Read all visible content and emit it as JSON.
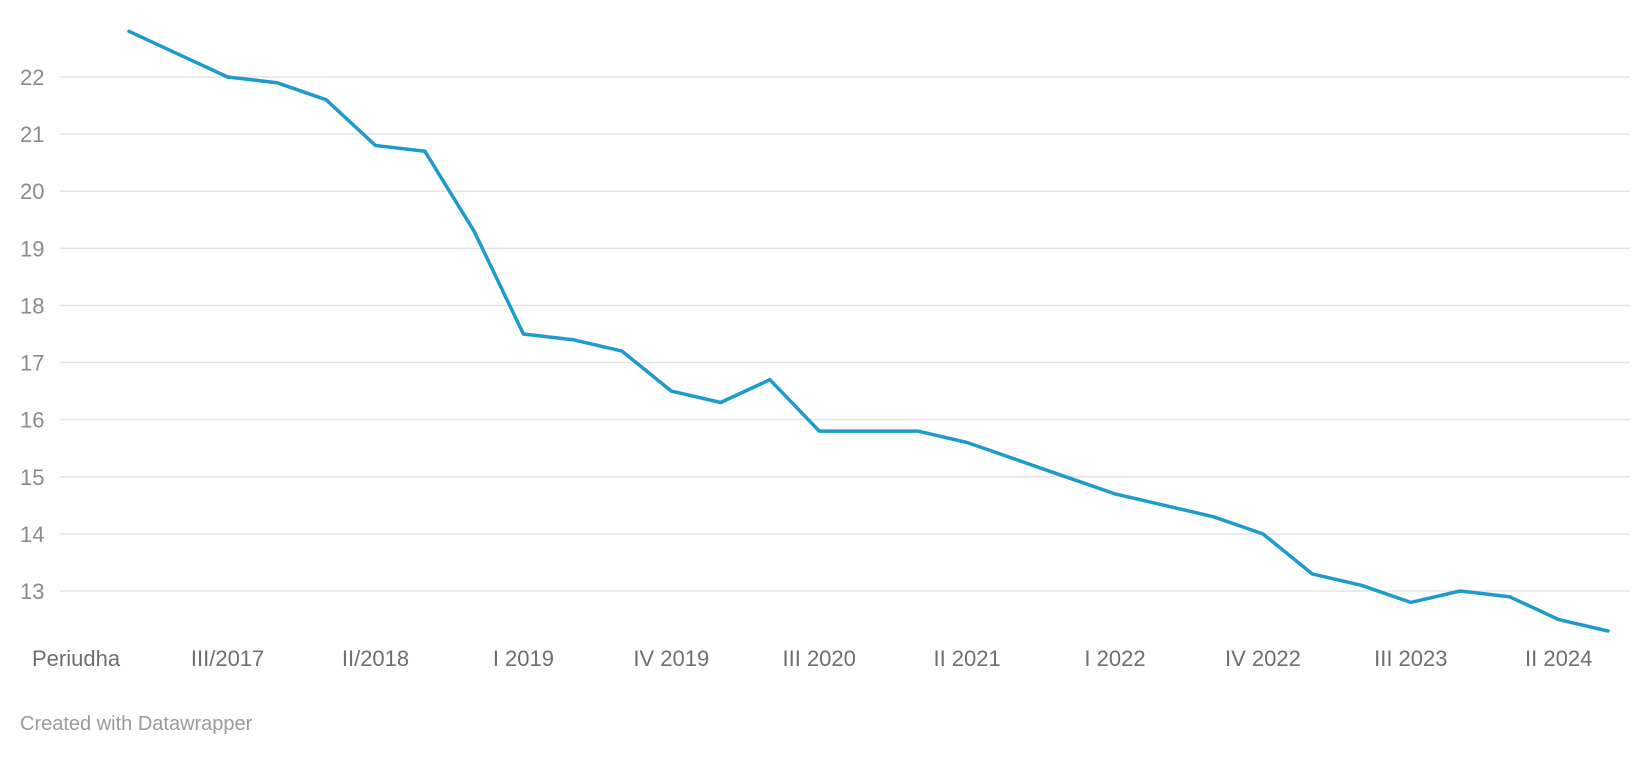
{
  "chart_data": {
    "type": "line",
    "title": "",
    "xlabel": "",
    "ylabel": "",
    "ylim": [
      12.2,
      23.0
    ],
    "grid": true,
    "y_ticks": [
      13,
      14,
      15,
      16,
      17,
      18,
      19,
      20,
      21,
      22
    ],
    "x_tick_labels": [
      {
        "label": "Periudha",
        "index": 0
      },
      {
        "label": "III/2017",
        "index": 2
      },
      {
        "label": "II/2018",
        "index": 5
      },
      {
        "label": "I 2019",
        "index": 8
      },
      {
        "label": "IV 2019",
        "index": 11
      },
      {
        "label": "III 2020",
        "index": 14
      },
      {
        "label": "II 2021",
        "index": 17
      },
      {
        "label": "I 2022",
        "index": 20
      },
      {
        "label": "IV 2022",
        "index": 23
      },
      {
        "label": "III 2023",
        "index": 26
      },
      {
        "label": "II 2024",
        "index": 29
      }
    ],
    "series": [
      {
        "color": "#1d9bcc",
        "values": [
          22.8,
          22.4,
          22.0,
          21.9,
          21.6,
          20.8,
          20.7,
          19.3,
          17.5,
          17.4,
          17.2,
          16.5,
          16.3,
          16.7,
          15.8,
          15.8,
          15.8,
          15.6,
          15.3,
          15.0,
          14.7,
          14.5,
          14.3,
          14.0,
          13.3,
          13.1,
          12.8,
          13.0,
          12.9,
          12.5,
          12.3
        ]
      }
    ]
  },
  "footer": {
    "credit": "Created with Datawrapper"
  }
}
